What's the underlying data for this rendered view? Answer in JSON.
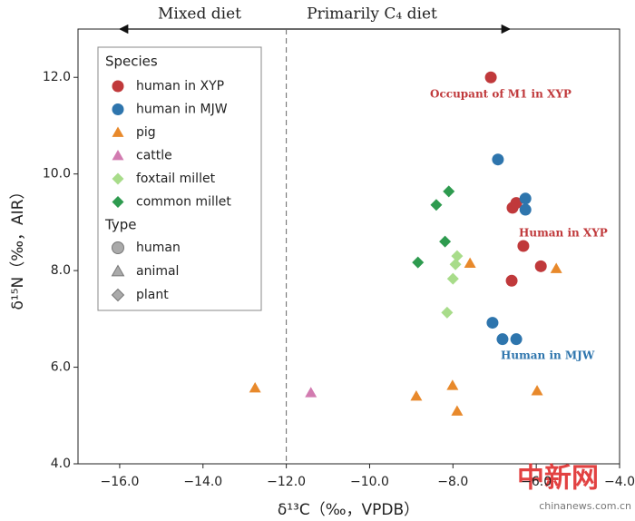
{
  "chart_data": {
    "type": "scatter",
    "x_label": "δ¹³C（‰，VPDB）",
    "y_label": "δ¹⁵N（‰，AIR）",
    "xlim": [
      -17,
      -4
    ],
    "ylim": [
      4,
      13
    ],
    "xticks": [
      {
        "value": -16,
        "label": "−16.0"
      },
      {
        "value": -14,
        "label": "−14.0"
      },
      {
        "value": -12,
        "label": "−12.0"
      },
      {
        "value": -10,
        "label": "−10.0"
      },
      {
        "value": -8,
        "label": "−8.0"
      },
      {
        "value": -6,
        "label": "−6.0"
      },
      {
        "value": -4,
        "label": "−4.0"
      }
    ],
    "yticks": [
      {
        "value": 4,
        "label": "4.0"
      },
      {
        "value": 6,
        "label": "6.0"
      },
      {
        "value": 8,
        "label": "8.0"
      },
      {
        "value": 10,
        "label": "10.0"
      },
      {
        "value": 12,
        "label": "12.0"
      }
    ],
    "vline": -12,
    "top_labels": [
      "Mixed diet",
      "Primarily C₄ diet"
    ],
    "legend_species_title": "Species",
    "legend_type_title": "Type",
    "types": [
      {
        "name": "human",
        "marker": "circle"
      },
      {
        "name": "animal",
        "marker": "triangle"
      },
      {
        "name": "plant",
        "marker": "diamond"
      }
    ],
    "series": [
      {
        "name": "human in XYP",
        "color": "#c0393b",
        "marker": "circle",
        "x": [
          -7.09,
          -6.57,
          -6.48,
          -6.31,
          -5.89,
          -6.59
        ],
        "values": [
          12.0,
          9.3,
          9.4,
          8.51,
          8.09,
          7.79
        ]
      },
      {
        "name": "human in MJW",
        "color": "#2e75ad",
        "marker": "circle",
        "x": [
          -6.92,
          -6.26,
          -6.26,
          -7.05,
          -6.81,
          -6.48
        ],
        "values": [
          10.3,
          9.49,
          9.26,
          6.92,
          6.58,
          6.58
        ]
      },
      {
        "name": "pig",
        "color": "#e8892b",
        "marker": "triangle",
        "x": [
          -12.75,
          -8.88,
          -8.01,
          -7.9,
          -7.59,
          -5.98,
          -5.52
        ],
        "values": [
          5.57,
          5.4,
          5.62,
          5.09,
          8.15,
          5.51,
          8.04
        ]
      },
      {
        "name": "cattle",
        "color": "#d27bb0",
        "marker": "triangle",
        "x": [
          -11.41
        ],
        "values": [
          5.47
        ]
      },
      {
        "name": "foxtail millet",
        "color": "#a8dc8a",
        "marker": "diamond",
        "x": [
          -7.9,
          -7.94,
          -8.0,
          -8.14
        ],
        "values": [
          8.3,
          8.13,
          7.83,
          7.13
        ]
      },
      {
        "name": "common millet",
        "color": "#2e9b4f",
        "marker": "diamond",
        "x": [
          -8.1,
          -8.4,
          -8.19,
          -8.84
        ],
        "values": [
          9.64,
          9.36,
          8.6,
          8.17
        ]
      }
    ],
    "annotations": [
      {
        "text": "Occupant of M1 in XYP",
        "color": "#c0393b"
      },
      {
        "text": "Human in XYP",
        "color": "#c0393b"
      },
      {
        "text": "Human in MJW",
        "color": "#2e75ad"
      }
    ],
    "watermark": [
      "中新网",
      "chinanews.com.cn"
    ]
  }
}
